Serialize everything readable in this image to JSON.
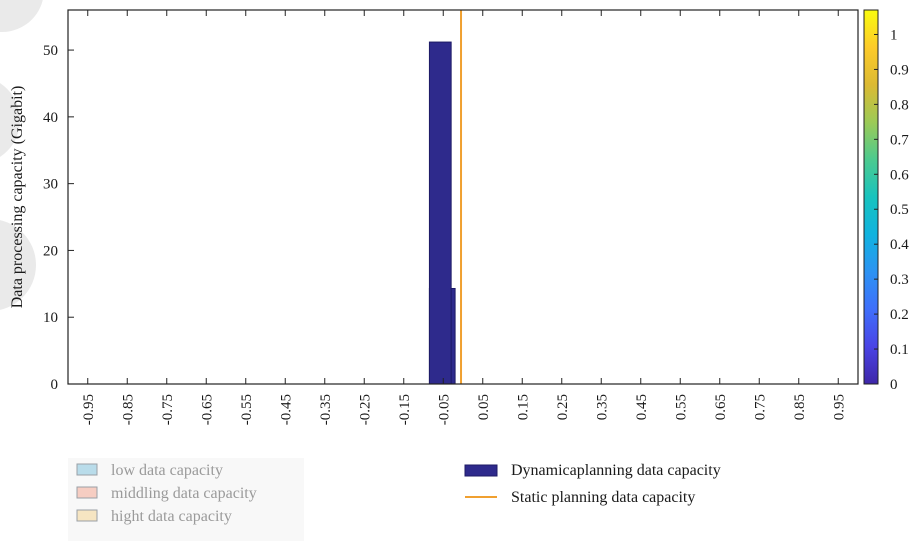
{
  "chart_data": {
    "type": "bar",
    "title": "",
    "xlabel": "",
    "ylabel": "Data processing capacity (Gigabit)",
    "x_ticks": [
      "-0.95",
      "-0.85",
      "-0.75",
      "-0.65",
      "-0.55",
      "-0.45",
      "-0.35",
      "-0.25",
      "-0.15",
      "-0.05",
      "0.05",
      "0.15",
      "0.25",
      "0.35",
      "0.45",
      "0.55",
      "0.65",
      "0.75",
      "0.85",
      "0.95"
    ],
    "y_ticks": [
      0,
      10,
      20,
      30,
      40,
      50
    ],
    "xlim": [
      -1.0,
      1.0
    ],
    "ylim": [
      0,
      56
    ],
    "grid": false,
    "series": [
      {
        "name": "Dynamicaplanning data capacity",
        "type": "bar",
        "color": "#2e2a8c",
        "bars": [
          {
            "x0": -0.085,
            "x1": -0.02,
            "value": 14.3
          },
          {
            "x0": -0.085,
            "x1": -0.03,
            "value": 51.2
          }
        ]
      },
      {
        "name": "Static planning data capacity",
        "type": "vline",
        "color": "#f0a030",
        "x": -0.005
      }
    ],
    "colorbar": {
      "ticks": [
        "0",
        "0.1",
        "0.2",
        "0.3",
        "0.4",
        "0.5",
        "0.6",
        "0.7",
        "0.8",
        "0.9",
        "1"
      ],
      "range": [
        0,
        1.07
      ],
      "colors": [
        "#3e26a8",
        "#4a44e5",
        "#3f6ffb",
        "#2c93f3",
        "#10b3df",
        "#18c3be",
        "#4cca8f",
        "#9cca56",
        "#dcba33",
        "#fdcb2a",
        "#f9fb0e"
      ]
    },
    "legend": {
      "placement": "bottom",
      "faded_entries": [
        {
          "label": "low data capacity",
          "color": "#b9dcea"
        },
        {
          "label": "middling data capacity",
          "color": "#f6cdc2"
        },
        {
          "label": "hight data capacity",
          "color": "#f6e5c2"
        }
      ]
    }
  }
}
